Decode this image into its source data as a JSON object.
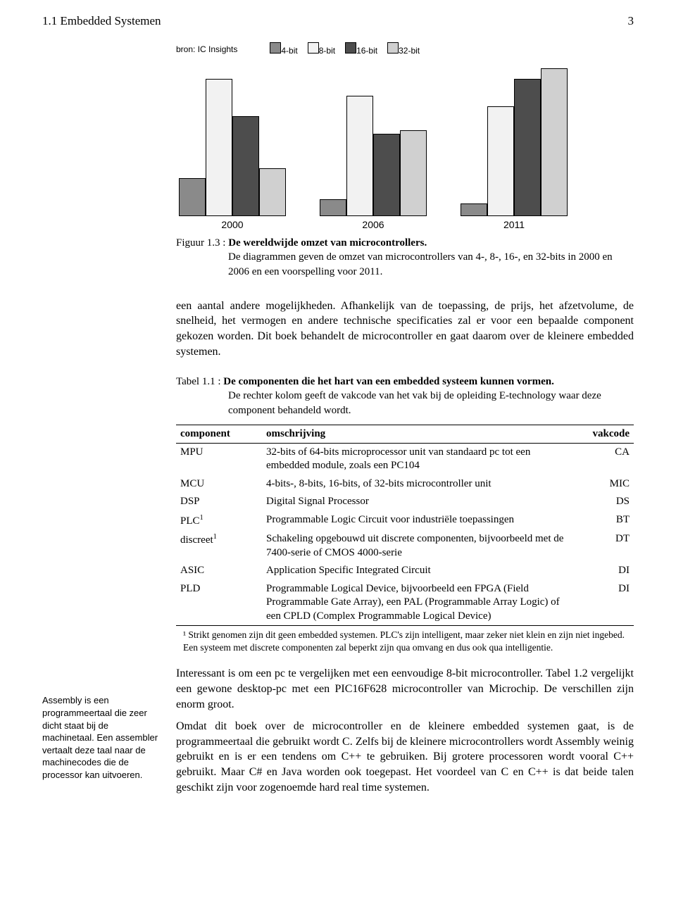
{
  "header": {
    "section": "1.1  Embedded Systemen",
    "page_number": "3"
  },
  "chart": {
    "type": "bar",
    "source_label": "bron: IC Insights",
    "legend": [
      {
        "label": "4-bit",
        "color": "#8a8a8a"
      },
      {
        "label": "8-bit",
        "color": "#f2f2f2"
      },
      {
        "label": "16-bit",
        "color": "#4d4d4d"
      },
      {
        "label": "32-bit",
        "color": "#d0d0d0"
      }
    ],
    "categories": [
      "2000",
      "2006",
      "2011"
    ],
    "max_value": 220,
    "groups": [
      {
        "values": [
          55,
          200,
          145,
          70
        ]
      },
      {
        "values": [
          25,
          175,
          120,
          125
        ]
      },
      {
        "values": [
          18,
          160,
          200,
          215
        ]
      }
    ],
    "bar_border_color": "#000000",
    "background_color": "#ffffff"
  },
  "figure_caption": {
    "label": "Figuur 1.3 :",
    "title": "De wereldwijde omzet van microcontrollers.",
    "subtitle": "De diagrammen geven de omzet van microcontrollers van 4-, 8-, 16-, en 32-bits in 2000 en 2006 en een voorspelling voor 2011."
  },
  "paragraph1": "een aantal andere mogelijkheden. Afhankelijk van de toepassing, de prijs, het afzetvolume, de snelheid, het vermogen en andere technische specificaties zal er voor een bepaalde component gekozen worden. Dit boek behandelt de micro­controller en gaat daarom over de kleinere embedded systemen.",
  "table_caption": {
    "label": "Tabel 1.1 :",
    "title": "De componenten die het hart van een embedded systeem kunnen vormen.",
    "subtitle": "De rechter kolom geeft de vakcode van het vak bij de opleiding E-technology waar deze component behandeld wordt."
  },
  "table": {
    "columns": [
      "component",
      "omschrijving",
      "vakcode"
    ],
    "rows": [
      {
        "component": "MPU",
        "sup": "",
        "omschrijving": "32-bits of 64-bits microprocessor unit van standaard pc tot een embedded module, zoals een PC104",
        "vakcode": "CA"
      },
      {
        "component": "MCU",
        "sup": "",
        "omschrijving": "4-bits-, 8-bits, 16-bits, of 32-bits microcontroller unit",
        "vakcode": "MIC"
      },
      {
        "component": "DSP",
        "sup": "",
        "omschrijving": "Digital Signal Processor",
        "vakcode": "DS"
      },
      {
        "component": "PLC",
        "sup": "1",
        "omschrijving": "Programmable Logic Circuit voor industriële toepassingen",
        "vakcode": "BT"
      },
      {
        "component": "discreet",
        "sup": "1",
        "omschrijving": "Schakeling opgebouwd uit discrete componenten, bijvoorbeeld met de 7400-serie of CMOS 4000-serie",
        "vakcode": "DT"
      },
      {
        "component": "ASIC",
        "sup": "",
        "omschrijving": "Application Specific Integrated Circuit",
        "vakcode": "DI"
      },
      {
        "component": "PLD",
        "sup": "",
        "omschrijving": "Programmable Logical Device, bijvoorbeeld een FPGA (Field Programmable Gate Array), een PAL (Programmable Array Logic) of een CPLD (Complex Programmable Logical Device)",
        "vakcode": "DI"
      }
    ],
    "footnote": "¹ Strikt genomen zijn dit geen embedded systemen. PLC's zijn intelligent, maar zeker niet klein en zijn niet ingebed. Een systeem met discrete componenten zal beperkt zijn qua omvang en dus ook qua intelligentie."
  },
  "sidenote": "Assembly is een programmeertaal die zeer dicht staat bij de machinetaal. Een assembler vertaalt deze taal naar de machinecodes die de processor kan uitvoeren.",
  "paragraph2": "Interessant is om een pc te vergelijken met een eenvoudige 8-bit microcontroller. Tabel 1.2 vergelijkt een gewone desktop-pc met een PIC16F628 microcontroller van Microchip. De verschillen zijn enorm groot.",
  "paragraph3": "Omdat dit boek over de microcontroller en de kleinere embedded systemen gaat, is de programmeertaal die gebruikt wordt C. Zelfs bij de kleinere microcontrollers wordt Assembly weinig gebruikt en is er een tendens om C++ te gebruiken. Bij grotere processoren wordt vooral C++ gebruikt. Maar C# en Java worden ook toegepast. Het voordeel van C en C++ is dat beide talen geschikt zijn voor zogenoemde hard real time systemen."
}
